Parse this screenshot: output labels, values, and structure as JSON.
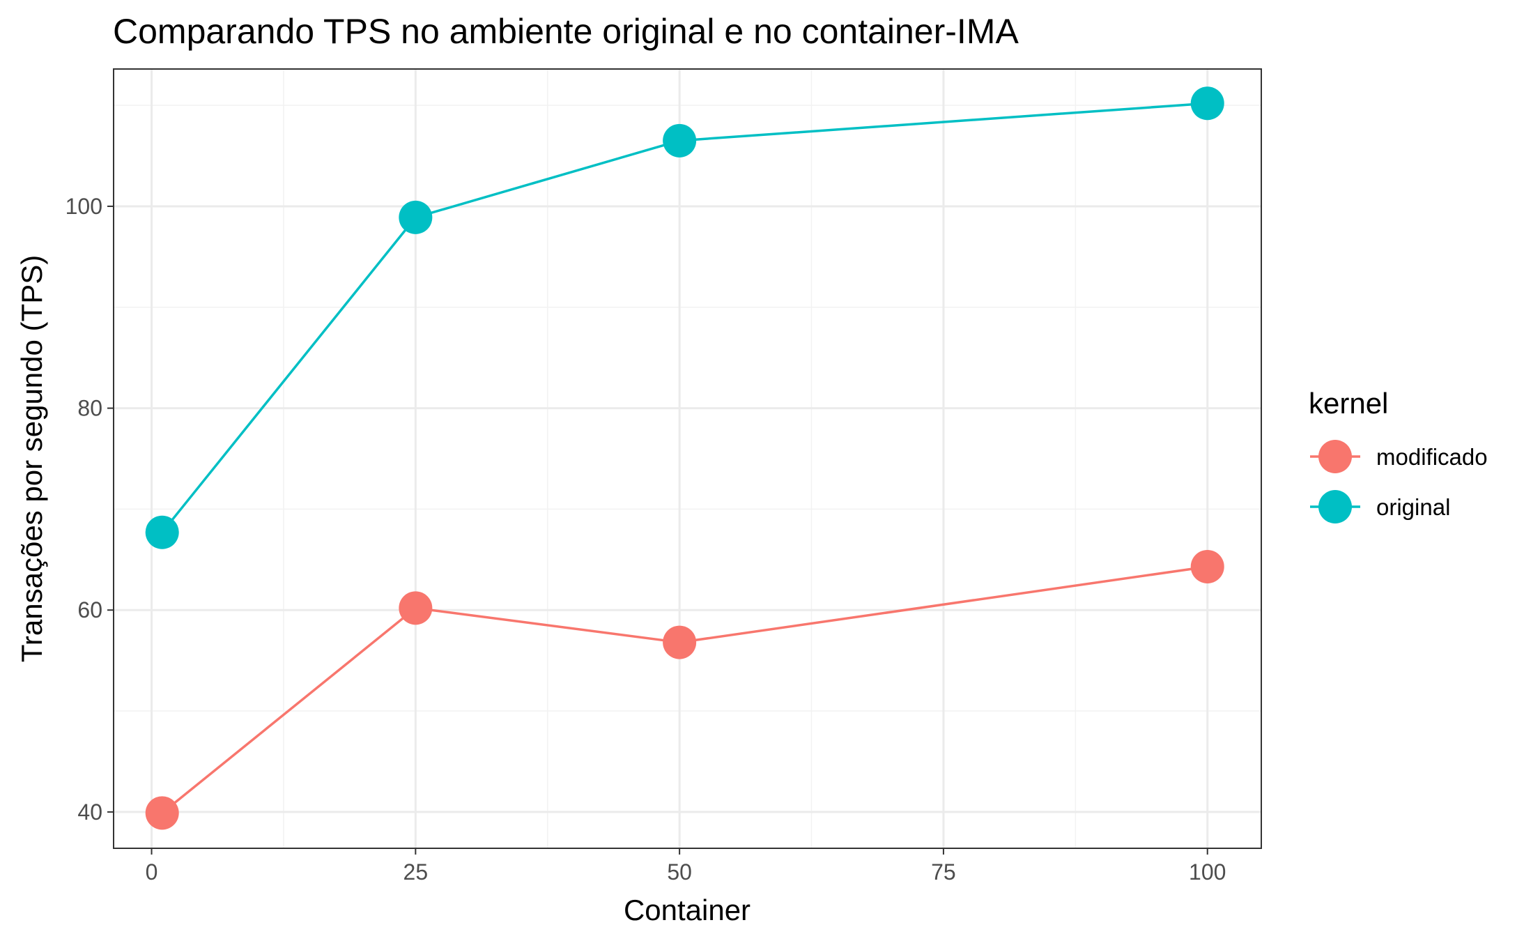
{
  "chart_data": {
    "type": "line",
    "title": "Comparando TPS no ambiente original e no container-IMA",
    "xlabel": "Container",
    "ylabel": "Transações por segundo (TPS)",
    "x": [
      1,
      25,
      50,
      100
    ],
    "xlim": [
      -3.6,
      105.1
    ],
    "ylim": [
      36.4,
      113.6
    ],
    "x_ticks": [
      0,
      25,
      50,
      75,
      100
    ],
    "x_tick_labels": [
      "0",
      "25",
      "50",
      "75",
      "100"
    ],
    "y_ticks": [
      40,
      60,
      80,
      100
    ],
    "y_tick_labels": [
      "40",
      "60",
      "80",
      "100"
    ],
    "grid": true,
    "legend": {
      "title": "kernel",
      "position": "right"
    },
    "series": [
      {
        "name": "modificado",
        "color": "#F8766D",
        "values": [
          39.9,
          60.2,
          56.8,
          64.3
        ]
      },
      {
        "name": "original",
        "color": "#00BFC4",
        "values": [
          67.7,
          98.9,
          106.5,
          110.2
        ]
      }
    ]
  }
}
